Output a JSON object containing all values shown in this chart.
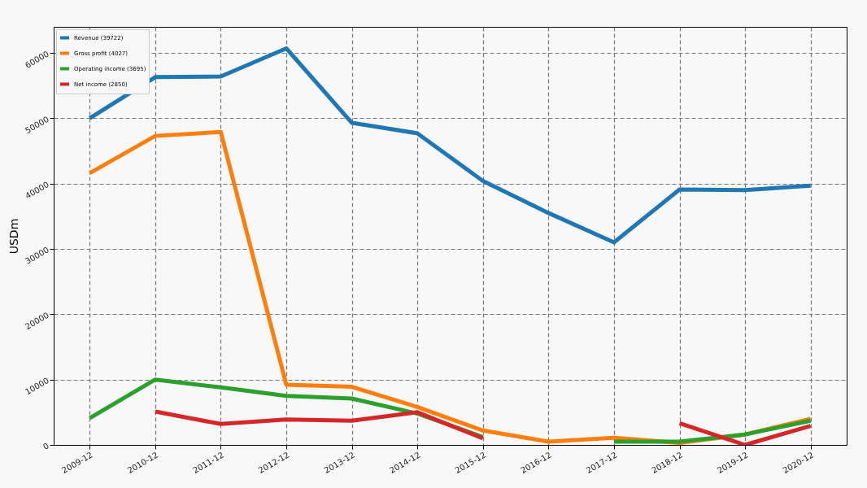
{
  "chart_data": {
    "type": "line",
    "ylabel": "USDm",
    "categories": [
      "2009-12",
      "2010-12",
      "2011-12",
      "2012-12",
      "2013-12",
      "2014-12",
      "2015-12",
      "2016-12",
      "2017-12",
      "2018-12",
      "2019-12",
      "2020-12"
    ],
    "ylim": [
      0,
      64000
    ],
    "yticks": [
      0,
      10000,
      20000,
      30000,
      40000,
      50000,
      60000
    ],
    "grid": true,
    "legend": "top left",
    "series": [
      {
        "name": "Revenue (39722)",
        "color": "#1f77b4",
        "values": [
          50000,
          56300,
          56400,
          60700,
          49300,
          47700,
          40400,
          35500,
          31000,
          39100,
          39000,
          39700
        ]
      },
      {
        "name": "Gross profit (4027)",
        "color": "#ff7f0e",
        "values": [
          41600,
          47300,
          47900,
          9200,
          8900,
          5800,
          2200,
          500,
          1100,
          300,
          1600,
          4000
        ]
      },
      {
        "name": "Operating income (3695)",
        "color": "#2ca02c",
        "values": [
          4100,
          10000,
          8800,
          7500,
          7100,
          4800,
          1200,
          null,
          500,
          500,
          1600,
          3700
        ]
      },
      {
        "name": "Net income (2850)",
        "color": "#d62728",
        "values": [
          null,
          5100,
          3200,
          3900,
          3700,
          5000,
          1000,
          null,
          null,
          3300,
          0,
          2900
        ]
      }
    ]
  }
}
